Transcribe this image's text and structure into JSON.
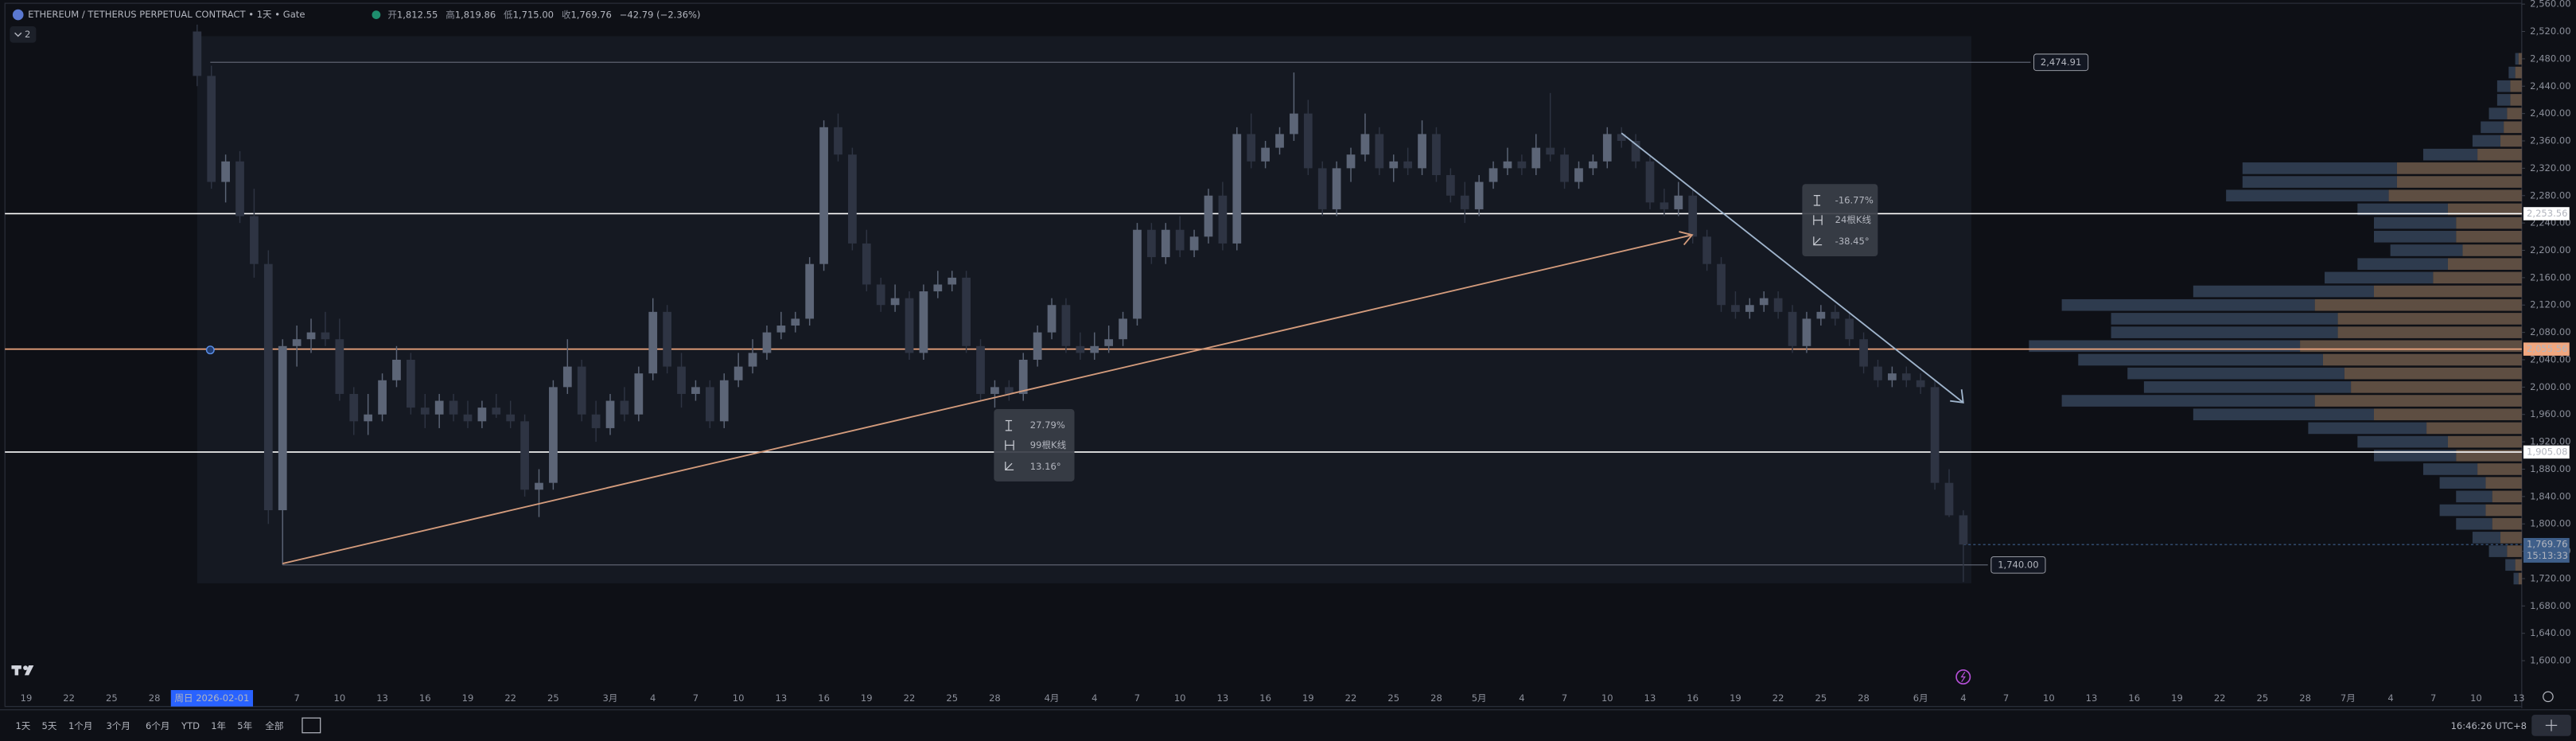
{
  "chart_data": {
    "type": "candlestick",
    "title": "ETHEREUM / TETHERUS PERPETUAL CONTRACT • 1天 • Gate",
    "ohlc_header": {
      "open_label": "开",
      "open": "1,812.55",
      "high_label": "高",
      "high": "1,819.86",
      "low_label": "低",
      "low": "1,715.00",
      "close_label": "收",
      "close": "1,769.76",
      "change": "−42.79 (−2.36%)"
    },
    "indicator_count": "2",
    "up_color": "#5c6577",
    "down_color": "#2e3443",
    "series": [
      {
        "name": "ETHUSDT",
        "values": [
          [
            2520,
            2530,
            2440,
            2455
          ],
          [
            2455,
            2470,
            2290,
            2300
          ],
          [
            2300,
            2340,
            2270,
            2330
          ],
          [
            2330,
            2345,
            2240,
            2250
          ],
          [
            2250,
            2290,
            2160,
            2180
          ],
          [
            2180,
            2200,
            1800,
            1820
          ],
          [
            1820,
            2070,
            1740,
            2060
          ],
          [
            2060,
            2090,
            2030,
            2070
          ],
          [
            2070,
            2100,
            2050,
            2080
          ],
          [
            2080,
            2110,
            2060,
            2070
          ],
          [
            2070,
            2100,
            1980,
            1990
          ],
          [
            1990,
            2000,
            1930,
            1950
          ],
          [
            1950,
            1990,
            1930,
            1960
          ],
          [
            1960,
            2020,
            1950,
            2010
          ],
          [
            2010,
            2060,
            2000,
            2040
          ],
          [
            2040,
            2050,
            1960,
            1970
          ],
          [
            1970,
            1990,
            1940,
            1960
          ],
          [
            1960,
            1990,
            1940,
            1980
          ],
          [
            1980,
            1990,
            1950,
            1960
          ],
          [
            1960,
            1980,
            1940,
            1950
          ],
          [
            1950,
            1980,
            1940,
            1970
          ],
          [
            1970,
            1990,
            1955,
            1960
          ],
          [
            1960,
            1980,
            1940,
            1950
          ],
          [
            1950,
            1960,
            1840,
            1850
          ],
          [
            1850,
            1880,
            1810,
            1860
          ],
          [
            1860,
            2010,
            1850,
            2000
          ],
          [
            2000,
            2070,
            1990,
            2030
          ],
          [
            2030,
            2040,
            1950,
            1960
          ],
          [
            1960,
            1980,
            1920,
            1940
          ],
          [
            1940,
            1990,
            1930,
            1980
          ],
          [
            1980,
            2000,
            1950,
            1960
          ],
          [
            1960,
            2030,
            1950,
            2020
          ],
          [
            2020,
            2130,
            2010,
            2110
          ],
          [
            2110,
            2120,
            2020,
            2030
          ],
          [
            2030,
            2050,
            1970,
            1990
          ],
          [
            1990,
            2010,
            1980,
            2000
          ],
          [
            2000,
            2010,
            1940,
            1950
          ],
          [
            1950,
            2020,
            1940,
            2010
          ],
          [
            2010,
            2050,
            2000,
            2030
          ],
          [
            2030,
            2070,
            2020,
            2050
          ],
          [
            2050,
            2090,
            2040,
            2080
          ],
          [
            2080,
            2110,
            2070,
            2090
          ],
          [
            2090,
            2110,
            2080,
            2100
          ],
          [
            2100,
            2190,
            2090,
            2180
          ],
          [
            2180,
            2390,
            2170,
            2380
          ],
          [
            2380,
            2400,
            2330,
            2340
          ],
          [
            2340,
            2350,
            2200,
            2210
          ],
          [
            2210,
            2230,
            2140,
            2150
          ],
          [
            2150,
            2160,
            2110,
            2120
          ],
          [
            2120,
            2150,
            2110,
            2130
          ],
          [
            2130,
            2140,
            2040,
            2050
          ],
          [
            2050,
            2150,
            2040,
            2140
          ],
          [
            2140,
            2170,
            2130,
            2150
          ],
          [
            2150,
            2170,
            2140,
            2160
          ],
          [
            2160,
            2170,
            2050,
            2060
          ],
          [
            2060,
            2070,
            1980,
            1990
          ],
          [
            1990,
            2010,
            1970,
            2000
          ],
          [
            2000,
            2010,
            1980,
            1990
          ],
          [
            1990,
            2050,
            1980,
            2040
          ],
          [
            2040,
            2090,
            2030,
            2080
          ],
          [
            2080,
            2130,
            2070,
            2120
          ],
          [
            2120,
            2130,
            2050,
            2060
          ],
          [
            2060,
            2080,
            2040,
            2050
          ],
          [
            2050,
            2080,
            2040,
            2060
          ],
          [
            2060,
            2090,
            2050,
            2070
          ],
          [
            2070,
            2110,
            2060,
            2100
          ],
          [
            2100,
            2240,
            2090,
            2230
          ],
          [
            2230,
            2240,
            2180,
            2190
          ],
          [
            2190,
            2240,
            2180,
            2230
          ],
          [
            2230,
            2250,
            2190,
            2200
          ],
          [
            2200,
            2230,
            2190,
            2220
          ],
          [
            2220,
            2290,
            2210,
            2280
          ],
          [
            2280,
            2300,
            2200,
            2210
          ],
          [
            2210,
            2380,
            2200,
            2370
          ],
          [
            2370,
            2400,
            2320,
            2330
          ],
          [
            2330,
            2360,
            2320,
            2350
          ],
          [
            2350,
            2380,
            2340,
            2370
          ],
          [
            2370,
            2460,
            2360,
            2400
          ],
          [
            2400,
            2420,
            2310,
            2320
          ],
          [
            2320,
            2330,
            2250,
            2260
          ],
          [
            2260,
            2330,
            2250,
            2320
          ],
          [
            2320,
            2350,
            2300,
            2340
          ],
          [
            2340,
            2400,
            2330,
            2370
          ],
          [
            2370,
            2380,
            2310,
            2320
          ],
          [
            2320,
            2340,
            2300,
            2330
          ],
          [
            2330,
            2350,
            2310,
            2320
          ],
          [
            2320,
            2390,
            2310,
            2370
          ],
          [
            2370,
            2380,
            2300,
            2310
          ],
          [
            2310,
            2320,
            2270,
            2280
          ],
          [
            2280,
            2300,
            2240,
            2260
          ],
          [
            2260,
            2310,
            2250,
            2300
          ],
          [
            2300,
            2330,
            2290,
            2320
          ],
          [
            2320,
            2350,
            2310,
            2330
          ],
          [
            2330,
            2340,
            2310,
            2320
          ],
          [
            2320,
            2370,
            2310,
            2350
          ],
          [
            2350,
            2430,
            2330,
            2340
          ],
          [
            2340,
            2350,
            2290,
            2300
          ],
          [
            2300,
            2330,
            2290,
            2320
          ],
          [
            2320,
            2340,
            2310,
            2330
          ],
          [
            2330,
            2380,
            2320,
            2370
          ],
          [
            2370,
            2380,
            2350,
            2360
          ],
          [
            2360,
            2370,
            2320,
            2330
          ],
          [
            2330,
            2340,
            2260,
            2270
          ],
          [
            2270,
            2290,
            2250,
            2260
          ],
          [
            2260,
            2300,
            2250,
            2280
          ],
          [
            2280,
            2290,
            2210,
            2220
          ],
          [
            2220,
            2230,
            2170,
            2180
          ],
          [
            2180,
            2190,
            2110,
            2120
          ],
          [
            2120,
            2140,
            2100,
            2110
          ],
          [
            2110,
            2130,
            2100,
            2120
          ],
          [
            2120,
            2140,
            2110,
            2130
          ],
          [
            2130,
            2140,
            2100,
            2110
          ],
          [
            2110,
            2120,
            2050,
            2060
          ],
          [
            2060,
            2110,
            2050,
            2100
          ],
          [
            2100,
            2120,
            2090,
            2110
          ],
          [
            2110,
            2120,
            2090,
            2100
          ],
          [
            2100,
            2110,
            2060,
            2070
          ],
          [
            2070,
            2080,
            2020,
            2030
          ],
          [
            2030,
            2040,
            2000,
            2010
          ],
          [
            2010,
            2030,
            2000,
            2020
          ],
          [
            2020,
            2030,
            2000,
            2010
          ],
          [
            2010,
            2020,
            1990,
            2000
          ],
          [
            2000,
            2010,
            1850,
            1860
          ],
          [
            1860,
            1880,
            1810,
            1812.55
          ],
          [
            1812.55,
            1819.86,
            1715,
            1769.76
          ]
        ]
      }
    ],
    "ylim": [
      1533,
      2566
    ],
    "yticks": [
      {
        "value": 1600,
        "label": "1,600.00"
      },
      {
        "value": 1640,
        "label": "1,640.00"
      },
      {
        "value": 1680,
        "label": "1,680.00"
      },
      {
        "value": 1720,
        "label": "1,720.00"
      },
      {
        "value": 1760,
        "label": "1,760.00"
      },
      {
        "value": 1800,
        "label": "1,800.00"
      },
      {
        "value": 1840,
        "label": "1,840.00"
      },
      {
        "value": 1880,
        "label": "1,880.00"
      },
      {
        "value": 1920,
        "label": "1,920.00"
      },
      {
        "value": 1960,
        "label": "1,960.00"
      },
      {
        "value": 2000,
        "label": "2,000.00"
      },
      {
        "value": 2040,
        "label": "2,040.00"
      },
      {
        "value": 2080,
        "label": "2,080.00"
      },
      {
        "value": 2120,
        "label": "2,120.00"
      },
      {
        "value": 2160,
        "label": "2,160.00"
      },
      {
        "value": 2200,
        "label": "2,200.00"
      },
      {
        "value": 2240,
        "label": "2,240.00"
      },
      {
        "value": 2280,
        "label": "2,280.00"
      },
      {
        "value": 2320,
        "label": "2,320.00"
      },
      {
        "value": 2360,
        "label": "2,360.00"
      },
      {
        "value": 2400,
        "label": "2,400.00"
      },
      {
        "value": 2440,
        "label": "2,440.00"
      },
      {
        "value": 2480,
        "label": "2,480.00"
      },
      {
        "value": 2520,
        "label": "2,520.00"
      },
      {
        "value": 2560,
        "label": "2,560.00"
      }
    ],
    "grid": false,
    "x_tick_labels": [
      "19",
      "22",
      "25",
      "28",
      "7",
      "10",
      "13",
      "16",
      "19",
      "22",
      "25",
      "3月",
      "4",
      "7",
      "10",
      "13",
      "16",
      "19",
      "22",
      "25",
      "28",
      "4月",
      "4",
      "7",
      "10",
      "13",
      "16",
      "19",
      "22",
      "25",
      "28",
      "5月",
      "4",
      "7",
      "10",
      "13",
      "16",
      "19",
      "22",
      "25",
      "28",
      "6月",
      "4",
      "7",
      "10",
      "13",
      "16",
      "19",
      "22",
      "25",
      "28",
      "7月",
      "4",
      "7",
      "10",
      "13"
    ],
    "crosshair_date": "周日 2026-02-01",
    "horizontal_lines": [
      {
        "value": 2253.56,
        "label": "2,253.56",
        "color": "#ffffff"
      },
      {
        "value": 2055.56,
        "label": "2,055.56",
        "color": "#f0a77f"
      },
      {
        "value": 1905.08,
        "label": "1,905.08",
        "color": "#ffffff"
      }
    ],
    "price_lines": [
      {
        "value": 2474.91,
        "label": "2,474.91"
      },
      {
        "value": 1740,
        "label": "1,740.00"
      }
    ],
    "last_price": {
      "value": 1769.76,
      "label": "1,769.76",
      "countdown": "15:13:33",
      "color": "#3f5f8a"
    },
    "measures": [
      {
        "change": "27.79%",
        "bars": "99根K线",
        "angle": "13.16°"
      },
      {
        "change": "-16.77%",
        "bars": "24根K线",
        "angle": "-38.45°"
      }
    ],
    "volume_profile": {
      "up_color": "#7a6352",
      "down_color": "#394961",
      "xlim": [
        0,
        300
      ],
      "prices": [
        1720,
        1740,
        1760,
        1780,
        1800,
        1820,
        1840,
        1860,
        1880,
        1900,
        1920,
        1940,
        1960,
        1980,
        2000,
        2020,
        2040,
        2060,
        2080,
        2100,
        2120,
        2140,
        2160,
        2180,
        2200,
        2220,
        2240,
        2260,
        2280,
        2300,
        2320,
        2340,
        2360,
        2380,
        2400,
        2420,
        2440,
        2460,
        2480
      ],
      "up": [
        2,
        4,
        9,
        13,
        18,
        22,
        18,
        22,
        27,
        40,
        45,
        58,
        90,
        126,
        104,
        108,
        121,
        135,
        112,
        112,
        126,
        90,
        54,
        45,
        36,
        40,
        40,
        45,
        81,
        76,
        76,
        27,
        13,
        11,
        9,
        7,
        7,
        4,
        2
      ],
      "down": [
        3,
        6,
        11,
        17,
        22,
        28,
        22,
        28,
        33,
        50,
        55,
        72,
        110,
        154,
        126,
        132,
        149,
        165,
        138,
        138,
        154,
        110,
        66,
        55,
        44,
        50,
        50,
        55,
        99,
        94,
        94,
        33,
        17,
        14,
        11,
        8,
        8,
        4,
        2
      ]
    },
    "periods": [
      "1天",
      "5天",
      "1个月",
      "3个月",
      "6个月",
      "YTD",
      "1年",
      "5年",
      "全部"
    ],
    "clock": "16:46:26 UTC+8"
  }
}
